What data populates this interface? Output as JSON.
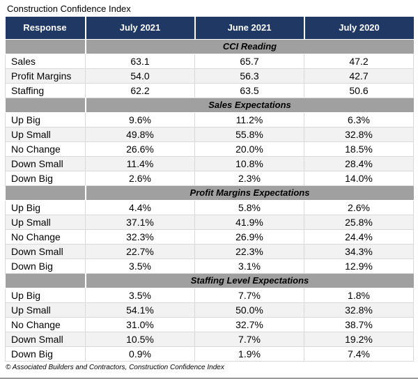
{
  "title": "Construction Confidence Index",
  "footer": "© Associated Builders and Contractors, Construction Confidence Index",
  "colors": {
    "header_bg": "#1F3864",
    "header_text": "#FFFFFF",
    "section_band_bg": "#A0A0A0",
    "row_alt_bg": "#F2F2F2",
    "grid_border": "#D9D9D9"
  },
  "chart_data": {
    "type": "table",
    "title": "Construction Confidence Index",
    "columns": [
      "Response",
      "July 2021",
      "June 2021",
      "July 2020"
    ],
    "sections": [
      {
        "label": "CCI Reading",
        "rows": [
          [
            "Sales",
            "63.1",
            "65.7",
            "47.2"
          ],
          [
            "Profit Margins",
            "54.0",
            "56.3",
            "42.7"
          ],
          [
            "Staffing",
            "62.2",
            "63.5",
            "50.6"
          ]
        ]
      },
      {
        "label": "Sales Expectations",
        "rows": [
          [
            "Up Big",
            "9.6%",
            "11.2%",
            "6.3%"
          ],
          [
            "Up Small",
            "49.8%",
            "55.8%",
            "32.8%"
          ],
          [
            "No Change",
            "26.6%",
            "20.0%",
            "18.5%"
          ],
          [
            "Down Small",
            "11.4%",
            "10.8%",
            "28.4%"
          ],
          [
            "Down Big",
            "2.6%",
            "2.3%",
            "14.0%"
          ]
        ]
      },
      {
        "label": "Profit Margins Expectations",
        "rows": [
          [
            "Up Big",
            "4.4%",
            "5.8%",
            "2.6%"
          ],
          [
            "Up Small",
            "37.1%",
            "41.9%",
            "25.8%"
          ],
          [
            "No Change",
            "32.3%",
            "26.9%",
            "24.4%"
          ],
          [
            "Down Small",
            "22.7%",
            "22.3%",
            "34.3%"
          ],
          [
            "Down Big",
            "3.5%",
            "3.1%",
            "12.9%"
          ]
        ]
      },
      {
        "label": "Staffing Level Expectations",
        "rows": [
          [
            "Up Big",
            "3.5%",
            "7.7%",
            "1.8%"
          ],
          [
            "Up Small",
            "54.1%",
            "50.0%",
            "32.8%"
          ],
          [
            "No Change",
            "31.0%",
            "32.7%",
            "38.7%"
          ],
          [
            "Down Small",
            "10.5%",
            "7.7%",
            "19.2%"
          ],
          [
            "Down Big",
            "0.9%",
            "1.9%",
            "7.4%"
          ]
        ]
      }
    ],
    "source_note": "© Associated Builders and Contractors, Construction Confidence Index"
  }
}
